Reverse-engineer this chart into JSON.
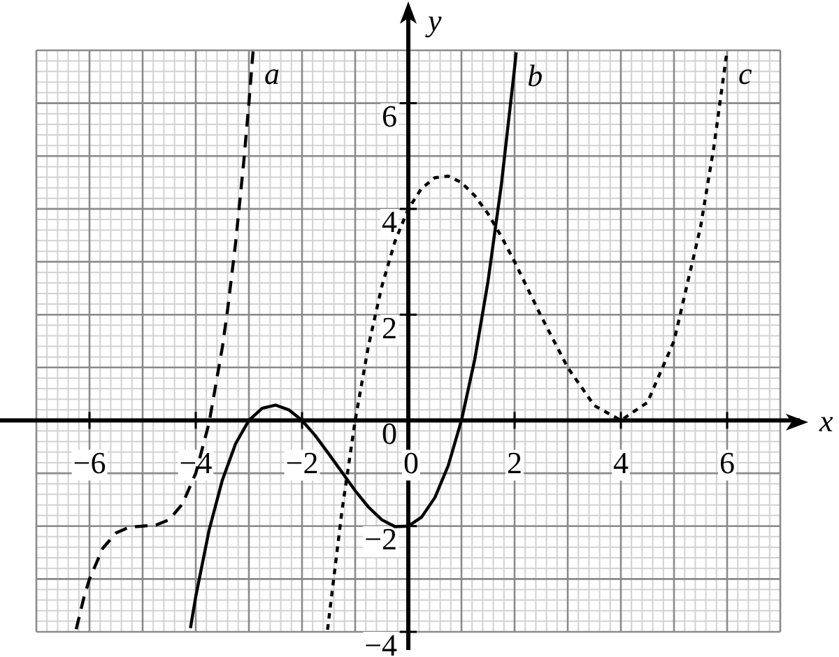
{
  "chart_data": {
    "type": "line",
    "xlabel": "x",
    "ylabel": "y",
    "xlim": [
      -7,
      7
    ],
    "ylim": [
      -4,
      7
    ],
    "xticks": [
      {
        "value": -6,
        "label": "−6"
      },
      {
        "value": -4,
        "label": "−4"
      },
      {
        "value": -2,
        "label": "−2"
      },
      0,
      2,
      4,
      6
    ],
    "yticks": [
      {
        "value": -4,
        "label": "−4"
      },
      {
        "value": -2,
        "label": "−2"
      },
      0,
      2,
      4,
      6
    ],
    "grid": true,
    "legend": false,
    "marker": "none",
    "series": [
      {
        "name": "a",
        "color": "#000000",
        "line_style": "dashed",
        "x": [
          -6.25,
          -6.1,
          -6,
          -5.75,
          -5.5,
          -5.25,
          -5,
          -4.75,
          -4.5,
          -4.25,
          -4,
          -3.75,
          -3.5,
          -3.4,
          -3.25,
          -3.1,
          -3,
          -2.92
        ],
        "values": [
          -3.95,
          -3.33,
          -3,
          -2.42,
          -2.13,
          -2.02,
          -2,
          -1.98,
          -1.88,
          -1.58,
          -1,
          -0.05,
          1.38,
          2.1,
          3.36,
          4.86,
          6,
          7
        ]
      },
      {
        "name": "b",
        "color": "#000000",
        "line_style": "solid",
        "x": [
          -4.1,
          -4,
          -3.75,
          -3.5,
          -3.25,
          -3,
          -2.75,
          -2.5,
          -2.25,
          -2,
          -1.75,
          -1.5,
          -1.25,
          -1,
          -0.75,
          -0.5,
          -0.25,
          0,
          0.25,
          0.5,
          0.75,
          1,
          1.25,
          1.5,
          1.75,
          2,
          2.03
        ],
        "values": [
          -3.93,
          -3.33,
          -2.08,
          -1.13,
          -0.44,
          0,
          0.23,
          0.29,
          0.2,
          0,
          -0.29,
          -0.63,
          -0.98,
          -1.33,
          -1.64,
          -1.88,
          -2.01,
          -2,
          -1.83,
          -1.46,
          -0.86,
          0,
          1.15,
          2.63,
          4.45,
          6.67,
          6.96
        ]
      },
      {
        "name": "c",
        "color": "#000000",
        "line_style": "dotted",
        "x": [
          -1.52,
          -1.25,
          -1,
          -0.75,
          -0.5,
          -0.25,
          0,
          0.25,
          0.5,
          0.75,
          1,
          1.25,
          1.5,
          1.75,
          2,
          2.5,
          3,
          3.5,
          4,
          4.5,
          5,
          5.5,
          5.75,
          6
        ],
        "values": [
          -3.96,
          -1.72,
          0,
          1.41,
          2.53,
          3.39,
          4,
          4.39,
          4.59,
          4.62,
          4.5,
          4.25,
          3.91,
          3.48,
          3,
          1.97,
          1,
          0.28,
          0,
          0.34,
          1.5,
          3.66,
          5.17,
          7
        ]
      }
    ]
  }
}
